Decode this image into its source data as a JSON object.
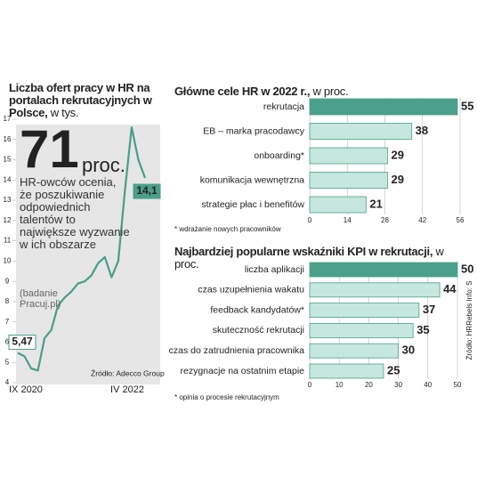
{
  "chart_data": [
    {
      "type": "line",
      "title": "Liczba ofert pracy w HR na portalach rekrutacyjnych w Polsce,",
      "unit": "w tys.",
      "categories": [
        "IX 2020",
        null,
        null,
        null,
        null,
        null,
        null,
        null,
        null,
        null,
        null,
        null,
        null,
        null,
        null,
        null,
        null,
        null,
        null,
        "IV 2022"
      ],
      "values": [
        5.47,
        5.3,
        4.7,
        4.6,
        6.2,
        6.6,
        7.8,
        8.2,
        8.5,
        8.9,
        9.0,
        9.3,
        9.9,
        10.2,
        9.2,
        10.0,
        13.5,
        16.6,
        15.0,
        14.1
      ],
      "value_labels": [
        "5,47",
        null,
        null,
        null,
        null,
        null,
        null,
        null,
        null,
        null,
        null,
        null,
        null,
        null,
        null,
        null,
        null,
        null,
        null,
        "14,1"
      ],
      "color": "#4a9e8a",
      "ylim": [
        4,
        17
      ],
      "yticks": [
        4,
        5,
        6,
        7,
        8,
        9,
        10,
        11,
        12,
        13,
        14,
        15,
        16,
        17
      ],
      "highlight": {
        "value": 71,
        "unit": "proc.",
        "text": "HR-owców ocenia, że poszukiwanie odpowiednich talentów to największe wyzwanie w ich obszarze",
        "note": "(badanie Pracuj.pl)"
      },
      "source": "Źródło: Adecco Group"
    },
    {
      "type": "hbar",
      "title": "Główne cele HR w 2022 r.,",
      "unit": "w proc.",
      "categories": [
        "rekrutacja",
        "EB – marka pracodawcy",
        "onboarding*",
        "komunikacja wewnętrzna",
        "strategie płac i benefitów"
      ],
      "values": [
        55,
        38,
        29,
        29,
        21
      ],
      "colors": [
        "#4aa08a",
        "#c6e7de",
        "#c6e7de",
        "#c6e7de",
        "#c6e7de"
      ],
      "edge_color": "#4aa08a",
      "xlim": [
        0,
        56
      ],
      "xticks": [
        0,
        14,
        28,
        42,
        56
      ],
      "footnote": "* wdrażanie nowych pracowników"
    },
    {
      "type": "hbar",
      "title": "Najbardziej popularne wskaźniki KPI w rekrutacji,",
      "unit": "w proc.",
      "categories": [
        "liczba aplikacji",
        "czas uzupełnienia wakatu",
        "feedback kandydatów*",
        "skuteczność rekrutacji",
        "czas do zatrudnienia pracownika",
        "rezygnacje na ostatnim etapie"
      ],
      "values": [
        50,
        44,
        37,
        35,
        30,
        25
      ],
      "colors": [
        "#4aa08a",
        "#c6e7de",
        "#c6e7de",
        "#c6e7de",
        "#c6e7de",
        "#c6e7de"
      ],
      "edge_color": "#4aa08a",
      "xlim": [
        0,
        50
      ],
      "xticks": [
        0,
        10,
        20,
        30,
        40,
        50
      ],
      "footnote": "* opinia o procesie rekrutacyjnym",
      "source": "Źródło: HRRebels Info: S"
    }
  ]
}
